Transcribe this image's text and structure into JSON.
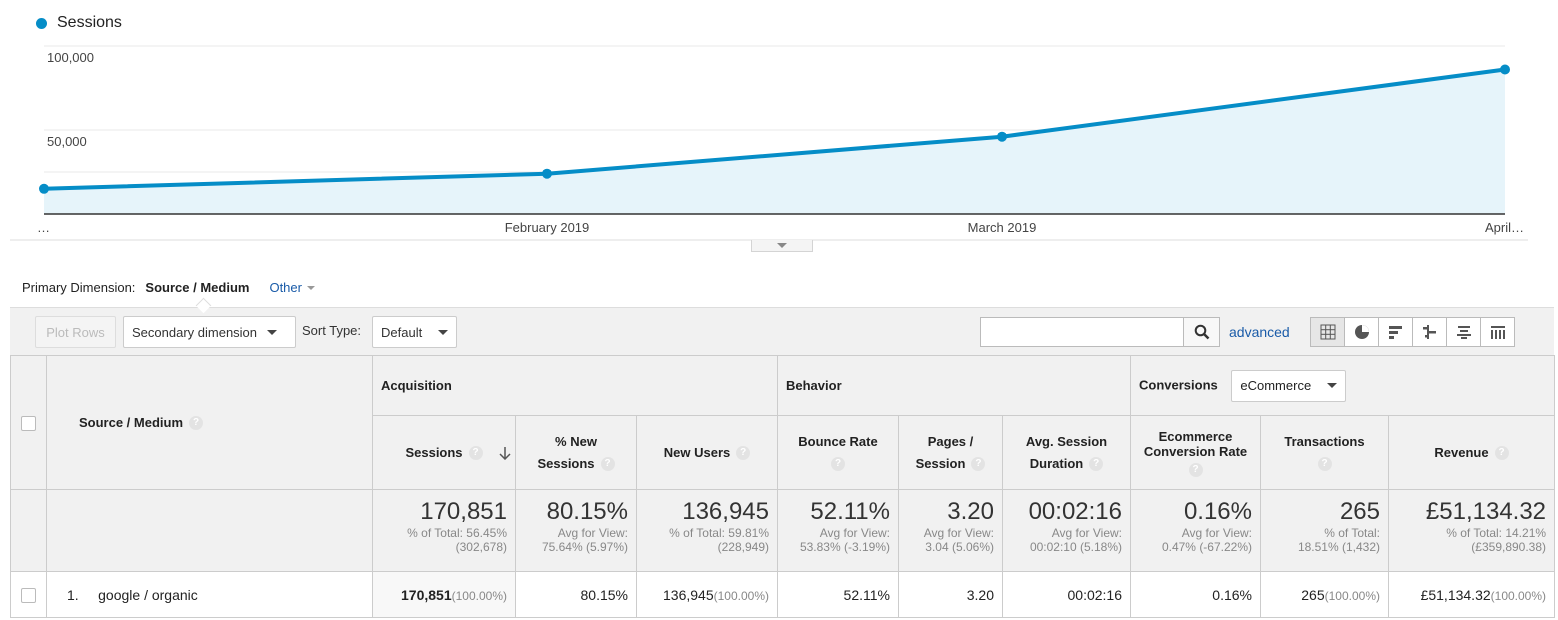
{
  "chart": {
    "legend": "Sessions",
    "colors": {
      "line": "#058dc7",
      "fill": "#e6f4fa",
      "grid": "#e8e8e8"
    },
    "y_ticks": [
      "100,000",
      "50,000"
    ],
    "x_labels": [
      "…",
      "February 2019",
      "March 2019",
      "April…"
    ]
  },
  "chart_data": {
    "type": "area",
    "x": [
      "…",
      "February 2019",
      "March 2019",
      "April…"
    ],
    "series": [
      {
        "name": "Sessions",
        "values": [
          15000,
          24000,
          46000,
          86000
        ]
      }
    ],
    "ylim": [
      0,
      100000
    ],
    "grid": true,
    "legend": "top-left"
  },
  "primary_dimension": {
    "label": "Primary Dimension:",
    "current": "Source / Medium",
    "other": "Other"
  },
  "toolbar": {
    "plot_rows": "Plot Rows",
    "secondary_dimension": "Secondary dimension",
    "sort_type_label": "Sort Type:",
    "sort_type_value": "Default",
    "search_value": "",
    "advanced": "advanced"
  },
  "table": {
    "dimension_header": "Source / Medium",
    "groups": {
      "acquisition": "Acquisition",
      "behavior": "Behavior",
      "conversions": "Conversions",
      "conversions_select": "eCommerce"
    },
    "columns": {
      "sessions": "Sessions",
      "pct_new_1": "% New",
      "pct_new_2": "Sessions",
      "new_users": "New Users",
      "bounce_rate": "Bounce Rate",
      "pages_1": "Pages /",
      "pages_2": "Session",
      "duration_1": "Avg. Session",
      "duration_2": "Duration",
      "ecr_1": "Ecommerce",
      "ecr_2": "Conversion Rate",
      "transactions": "Transactions",
      "revenue": "Revenue"
    },
    "totals": {
      "sessions": {
        "value": "170,851",
        "sub1": "% of Total: 56.45%",
        "sub2": "(302,678)"
      },
      "pct_new": {
        "value": "80.15%",
        "sub1": "Avg for View:",
        "sub2": "75.64% (5.97%)"
      },
      "new_users": {
        "value": "136,945",
        "sub1": "% of Total: 59.81%",
        "sub2": "(228,949)"
      },
      "bounce_rate": {
        "value": "52.11%",
        "sub1": "Avg for View:",
        "sub2": "53.83% (-3.19%)"
      },
      "pages": {
        "value": "3.20",
        "sub1": "Avg for View:",
        "sub2": "3.04 (5.06%)"
      },
      "duration": {
        "value": "00:02:16",
        "sub1": "Avg for View:",
        "sub2": "00:02:10 (5.18%)"
      },
      "ecr": {
        "value": "0.16%",
        "sub1": "Avg for View:",
        "sub2": "0.47% (-67.22%)"
      },
      "transactions": {
        "value": "265",
        "sub1": "% of Total:",
        "sub2": "18.51% (1,432)"
      },
      "revenue": {
        "value": "£51,134.32",
        "sub1": "% of Total: 14.21%",
        "sub2": "(£359,890.38)"
      }
    },
    "rows": [
      {
        "index": "1.",
        "source": "google / organic",
        "sessions": "170,851",
        "sessions_pct": "(100.00%)",
        "pct_new": "80.15%",
        "new_users": "136,945",
        "new_users_pct": "(100.00%)",
        "bounce_rate": "52.11%",
        "pages": "3.20",
        "duration": "00:02:16",
        "ecr": "0.16%",
        "transactions": "265",
        "transactions_pct": "(100.00%)",
        "revenue": "£51,134.32",
        "revenue_pct": "(100.00%)"
      }
    ]
  }
}
